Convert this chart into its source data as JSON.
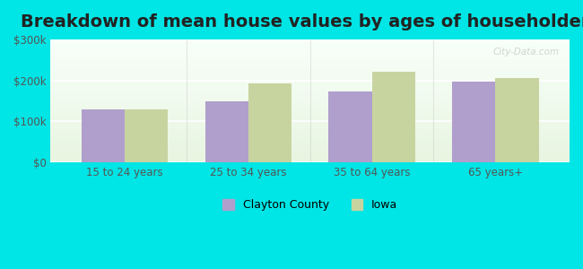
{
  "title": "Breakdown of mean house values by ages of householders",
  "categories": [
    "15 to 24 years",
    "25 to 34 years",
    "35 to 64 years",
    "65 years+"
  ],
  "clayton_county": [
    130000,
    148000,
    173000,
    197000
  ],
  "iowa": [
    130000,
    193000,
    222000,
    205000
  ],
  "bar_color_clayton": "#b09fcc",
  "bar_color_iowa": "#c8d4a0",
  "ylim": [
    0,
    300000
  ],
  "yticks": [
    0,
    100000,
    200000,
    300000
  ],
  "ytick_labels": [
    "$0",
    "$100k",
    "$200k",
    "$300k"
  ],
  "outer_bg": "#00e5e5",
  "legend_labels": [
    "Clayton County",
    "Iowa"
  ],
  "bar_width": 0.35,
  "title_fontsize": 14
}
